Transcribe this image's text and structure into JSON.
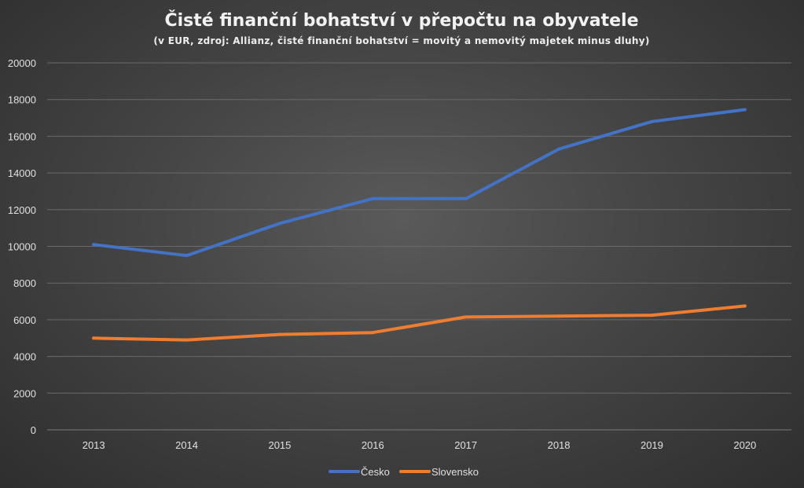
{
  "chart_data": {
    "type": "line",
    "title": "Čisté finanční bohatství v přepočtu na obyvatele",
    "subtitle": "(v EUR, zdroj: Allianz, čisté finanční bohatství = movitý a nemovitý majetek minus dluhy)",
    "xlabel": "",
    "ylabel": "",
    "x": [
      "2013",
      "2014",
      "2015",
      "2016",
      "2017",
      "2018",
      "2019",
      "2020"
    ],
    "ylim": [
      0,
      20000
    ],
    "yticks": [
      "0",
      "2000",
      "4000",
      "6000",
      "8000",
      "10000",
      "12000",
      "14000",
      "16000",
      "18000",
      "20000"
    ],
    "grid": true,
    "legend_position": "bottom",
    "series": [
      {
        "name": "Česko",
        "color": "#4472c4",
        "values": [
          10100,
          9500,
          11250,
          12600,
          12600,
          15300,
          16800,
          17450
        ]
      },
      {
        "name": "Slovensko",
        "color": "#ed7d31",
        "values": [
          5000,
          4900,
          5200,
          5300,
          6150,
          6200,
          6250,
          6750
        ]
      }
    ]
  }
}
